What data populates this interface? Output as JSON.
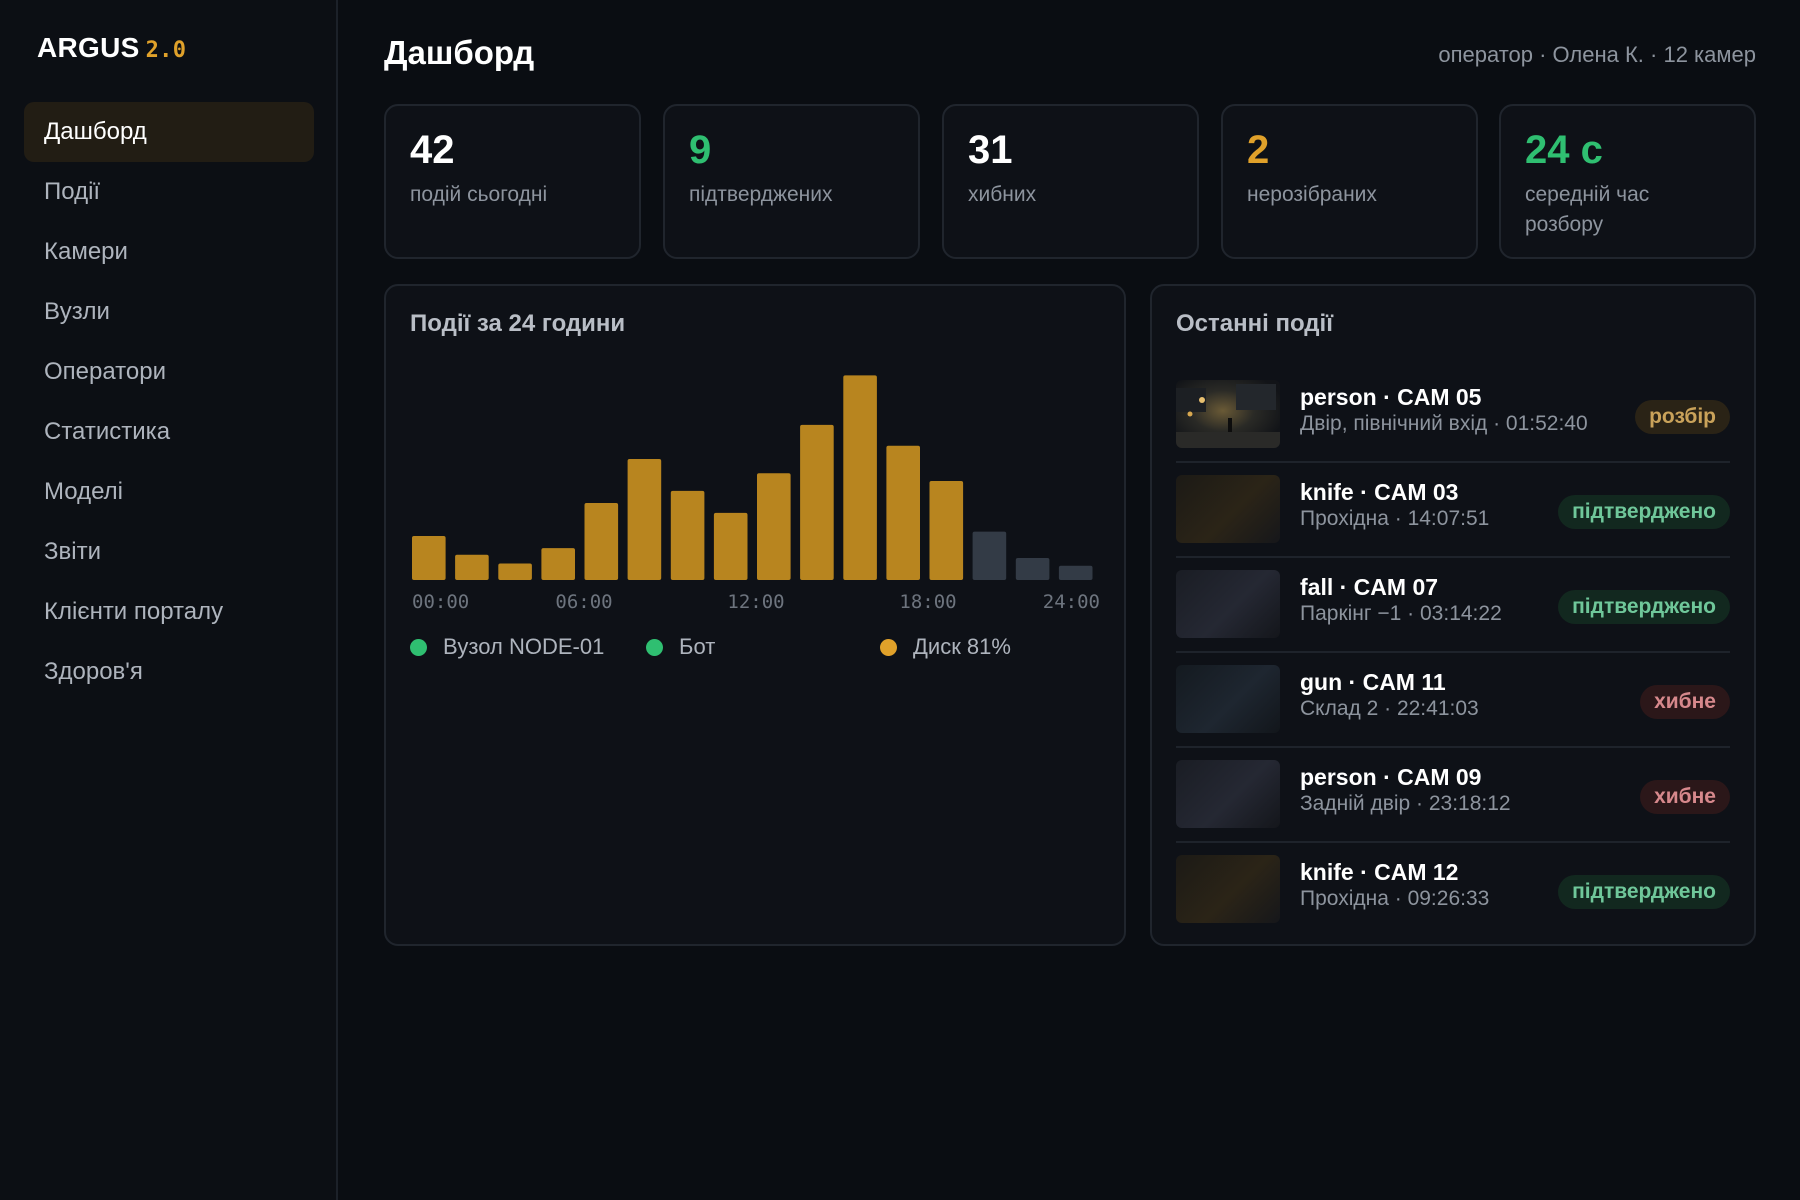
{
  "sidebar": {
    "logo": "ARGUS",
    "version": "2.0",
    "items": [
      {
        "label": "Дашборд",
        "active": true
      },
      {
        "label": "Події"
      },
      {
        "label": "Камери"
      },
      {
        "label": "Вузли"
      },
      {
        "label": "Оператори"
      },
      {
        "label": "Статистика"
      },
      {
        "label": "Моделі"
      },
      {
        "label": "Звіти"
      },
      {
        "label": "Клієнти порталу"
      },
      {
        "label": "Здоров'я"
      }
    ]
  },
  "header": {
    "title": "Дашборд",
    "meta": "оператор · Олена К. · 12 камер"
  },
  "stats": [
    {
      "value": "42",
      "label": "подій сьогодні",
      "color": "#ffffff"
    },
    {
      "value": "9",
      "label": "підтверджених",
      "color": "#2fbf71"
    },
    {
      "value": "31",
      "label": "хибних",
      "color": "#ffffff"
    },
    {
      "value": "2",
      "label": "нерозібраних",
      "color": "#e0a12a"
    },
    {
      "value": "24 с",
      "label": "середній час розбору",
      "color": "#2fbf71"
    }
  ],
  "chart_panel": {
    "title": "Події за 24 години"
  },
  "chart_data": {
    "type": "bar",
    "x_ticks": [
      "00:00",
      "06:00",
      "12:00",
      "18:00",
      "24:00"
    ],
    "values": [
      4,
      2.3,
      1.5,
      2.9,
      7,
      11,
      8.1,
      6.1,
      9.7,
      14.1,
      18.6,
      12.2,
      9,
      4.4,
      2,
      1.3
    ],
    "bar_colors": [
      "#b8851f",
      "#b8851f",
      "#b8851f",
      "#b8851f",
      "#b8851f",
      "#b8851f",
      "#b8851f",
      "#b8851f",
      "#b8851f",
      "#b8851f",
      "#b8851f",
      "#b8851f",
      "#b8851f",
      "#333b46",
      "#333b46",
      "#333b46"
    ],
    "ylim": [
      0,
      20
    ],
    "grid": false
  },
  "legend": [
    {
      "label": "Вузол NODE-01",
      "color": "#2fbf71"
    },
    {
      "label": "Бот",
      "color": "#2fbf71"
    },
    {
      "label": "Диск 81%",
      "color": "#e0a12a"
    }
  ],
  "events_panel": {
    "title": "Останні події",
    "items": [
      {
        "title": "person · CAM 05",
        "subtitle": "Двір, північний вхід · 01:52:40",
        "status": "розбір",
        "status_type": "review",
        "thumb": "night-yard"
      },
      {
        "title": "knife · CAM 03",
        "subtitle": "Прохідна · 14:07:51",
        "status": "підтверджено",
        "status_type": "confirmed",
        "thumb": "dark-warm"
      },
      {
        "title": "fall · CAM 07",
        "subtitle": "Паркінг −1 · 03:14:22",
        "status": "підтверджено",
        "status_type": "confirmed",
        "thumb": "dark-cool"
      },
      {
        "title": "gun · CAM 11",
        "subtitle": "Склад 2 · 22:41:03",
        "status": "хибне",
        "status_type": "false",
        "thumb": "dark-blue"
      },
      {
        "title": "person · CAM 09",
        "subtitle": "Задній двір · 23:18:12",
        "status": "хибне",
        "status_type": "false",
        "thumb": "dark-cool"
      },
      {
        "title": "knife · CAM 12",
        "subtitle": "Прохідна · 09:26:33",
        "status": "підтверджено",
        "status_type": "confirmed",
        "thumb": "dark-warm"
      }
    ]
  }
}
